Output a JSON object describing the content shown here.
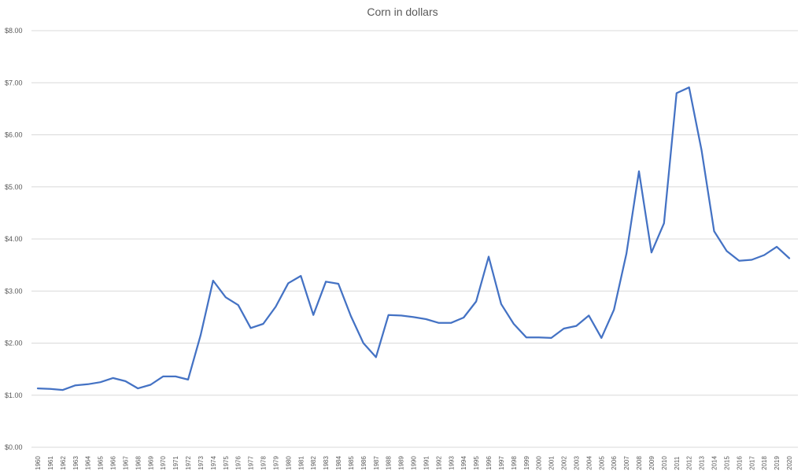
{
  "chart_data": {
    "type": "line",
    "title": "Corn in dollars",
    "xlabel": "",
    "ylabel": "",
    "ylim": [
      0,
      8
    ],
    "y_ticks": [
      "$0.00",
      "$1.00",
      "$2.00",
      "$3.00",
      "$4.00",
      "$5.00",
      "$6.00",
      "$7.00",
      "$8.00"
    ],
    "y_tick_values": [
      0,
      1,
      2,
      3,
      4,
      5,
      6,
      7,
      8
    ],
    "grid": true,
    "legend": "none",
    "categories": [
      "1960",
      "1961",
      "1962",
      "1963",
      "1964",
      "1965",
      "1966",
      "1967",
      "1968",
      "1969",
      "1970",
      "1971",
      "1972",
      "1973",
      "1974",
      "1975",
      "1976",
      "1977",
      "1978",
      "1979",
      "1980",
      "1981",
      "1982",
      "1983",
      "1984",
      "1985",
      "1986",
      "1987",
      "1988",
      "1989",
      "1990",
      "1991",
      "1992",
      "1993",
      "1994",
      "1995",
      "1996",
      "1997",
      "1998",
      "1999",
      "2000",
      "2001",
      "2002",
      "2003",
      "2004",
      "2005",
      "2006",
      "2007",
      "2008",
      "2009",
      "2010",
      "2011",
      "2012",
      "2013",
      "2014",
      "2015",
      "2016",
      "2017",
      "2018",
      "2019",
      "2020"
    ],
    "series": [
      {
        "color": "#4472c4",
        "values": [
          1.13,
          1.12,
          1.1,
          1.19,
          1.21,
          1.25,
          1.33,
          1.27,
          1.13,
          1.2,
          1.36,
          1.36,
          1.3,
          2.15,
          3.2,
          2.88,
          2.73,
          2.29,
          2.37,
          2.7,
          3.15,
          3.29,
          2.54,
          3.18,
          3.14,
          2.52,
          2.0,
          1.73,
          2.54,
          2.53,
          2.5,
          2.46,
          2.39,
          2.39,
          2.49,
          2.8,
          3.66,
          2.75,
          2.37,
          2.11,
          2.11,
          2.1,
          2.28,
          2.33,
          2.53,
          2.1,
          2.64,
          3.72,
          5.3,
          3.74,
          4.3,
          6.8,
          6.91,
          5.7,
          4.15,
          3.77,
          3.58,
          3.6,
          3.69,
          3.85,
          3.63
        ]
      }
    ]
  }
}
